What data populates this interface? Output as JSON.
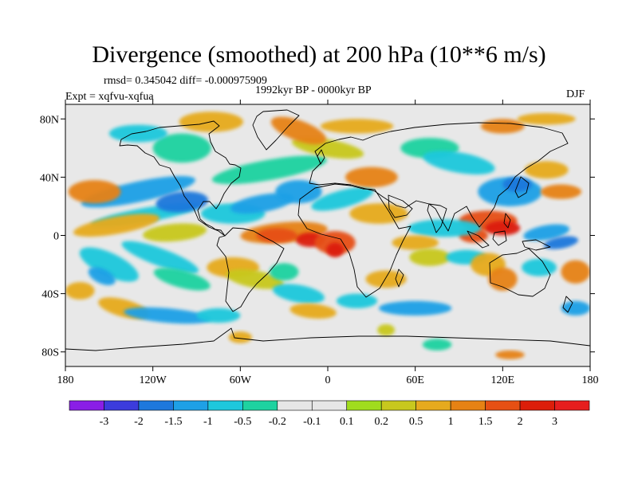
{
  "title": "Divergence (smoothed) at 200 hPa (10**6 m/s)",
  "stats": "rmsd= 0.345042 diff= -0.000975909",
  "experiment": "Expt = xqfvu-xqfua",
  "period": "1992kyr BP - 0000kyr BP",
  "season": "DJF",
  "map": {
    "lon_range": [
      -180,
      180
    ],
    "lat_range": [
      -90,
      90
    ],
    "background_color": "#e8e8e8",
    "x_ticks": [
      "180",
      "120W",
      "60W",
      "0",
      "60E",
      "120E",
      "180"
    ],
    "y_ticks": [
      "80N",
      "40N",
      "0",
      "40S",
      "80S"
    ]
  },
  "colorbar": {
    "labels": [
      "-3",
      "-2",
      "-1.5",
      "-1",
      "-0.5",
      "-0.2",
      "-0.1",
      "0.1",
      "0.2",
      "0.5",
      "1",
      "1.5",
      "2",
      "3"
    ],
    "colors": [
      "#8a1ee6",
      "#3c3cdc",
      "#1e78dc",
      "#1ea0e6",
      "#1ec8dc",
      "#1ed2a0",
      "#e6e6e6",
      "#e6e6e6",
      "#a0dc1e",
      "#c8c81e",
      "#e6aa1e",
      "#e68214",
      "#e65014",
      "#dc1e0a",
      "#e61e1e"
    ]
  }
}
